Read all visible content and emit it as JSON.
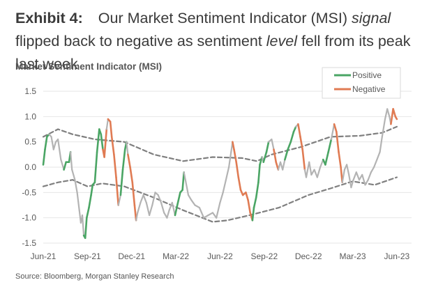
{
  "headline": {
    "label": "Exhibit 4:",
    "part1": "Our Market Sentiment Indicator (MSI) ",
    "em1": "signal",
    "part2": " flipped back to negative as sentiment ",
    "em2": "level",
    "part3": " fell from its peak last week"
  },
  "source": "Source: Bloomberg, Morgan Stanley Research",
  "colors": {
    "positive": "#4aa564",
    "negative": "#e07b53",
    "level": "#b3b3b3",
    "band": "#7f7f7f"
  },
  "chart_data": {
    "type": "line",
    "title": "Market Sentiment Indicator (MSI)",
    "ylim": [
      -1.5,
      1.5
    ],
    "yticks": [
      "1.5",
      "1.0",
      "0.5",
      "0.0",
      "-0.5",
      "-1.0",
      "-1.5"
    ],
    "yvalues": [
      1.5,
      1.0,
      0.5,
      0.0,
      -0.5,
      -1.0,
      -1.5
    ],
    "xticks": [
      "Jun-21",
      "Sep-21",
      "Dec-21",
      "Mar-22",
      "Jun-22",
      "Sep-22",
      "Dec-22",
      "Mar-23",
      "Jun-23"
    ],
    "xlim_months": [
      0,
      25
    ],
    "legend": {
      "position": "top-right",
      "entries": [
        "Positive",
        "Negative"
      ]
    },
    "series": [
      {
        "role": "msi",
        "points": [
          [
            0.0,
            0.05,
            "p"
          ],
          [
            0.12,
            0.35,
            "p"
          ],
          [
            0.25,
            0.6,
            "p"
          ],
          [
            0.4,
            0.65,
            "p"
          ],
          [
            0.55,
            0.6,
            "g"
          ],
          [
            0.7,
            0.35,
            "g"
          ],
          [
            0.85,
            0.5,
            "g"
          ],
          [
            1.0,
            0.55,
            "g"
          ],
          [
            1.2,
            0.15,
            "g"
          ],
          [
            1.4,
            -0.05,
            "g"
          ],
          [
            1.55,
            0.1,
            "p"
          ],
          [
            1.75,
            0.1,
            "p"
          ],
          [
            1.85,
            0.3,
            "p"
          ],
          [
            1.95,
            -0.05,
            "g"
          ],
          [
            2.15,
            -0.25,
            "g"
          ],
          [
            2.3,
            -0.5,
            "g"
          ],
          [
            2.45,
            -0.85,
            "g"
          ],
          [
            2.55,
            -1.1,
            "g"
          ],
          [
            2.65,
            -0.95,
            "g"
          ],
          [
            2.75,
            -1.35,
            "g"
          ],
          [
            2.85,
            -1.4,
            "p"
          ],
          [
            2.95,
            -1.0,
            "p"
          ],
          [
            3.1,
            -0.8,
            "p"
          ],
          [
            3.25,
            -0.55,
            "p"
          ],
          [
            3.35,
            -0.35,
            "p"
          ],
          [
            3.5,
            -0.3,
            "p"
          ],
          [
            3.65,
            0.3,
            "p"
          ],
          [
            3.8,
            0.75,
            "p"
          ],
          [
            3.92,
            0.65,
            "p"
          ],
          [
            4.05,
            0.35,
            "p"
          ],
          [
            4.15,
            0.2,
            "n"
          ],
          [
            4.3,
            0.75,
            "n"
          ],
          [
            4.4,
            0.95,
            "g"
          ],
          [
            4.55,
            0.9,
            "n"
          ],
          [
            4.65,
            0.6,
            "n"
          ],
          [
            4.8,
            0.25,
            "n"
          ],
          [
            4.95,
            -0.2,
            "n"
          ],
          [
            5.1,
            -0.75,
            "n"
          ],
          [
            5.25,
            -0.55,
            "g"
          ],
          [
            5.4,
            -0.05,
            "p"
          ],
          [
            5.55,
            0.35,
            "p"
          ],
          [
            5.65,
            0.5,
            "p"
          ],
          [
            5.75,
            0.25,
            "g"
          ],
          [
            5.9,
            0.0,
            "n"
          ],
          [
            6.05,
            -0.3,
            "n"
          ],
          [
            6.2,
            -0.75,
            "n"
          ],
          [
            6.3,
            -1.05,
            "n"
          ],
          [
            6.4,
            -0.9,
            "g"
          ],
          [
            6.6,
            -0.7,
            "g"
          ],
          [
            6.8,
            -0.55,
            "g"
          ],
          [
            7.0,
            -0.7,
            "g"
          ],
          [
            7.2,
            -0.95,
            "g"
          ],
          [
            7.4,
            -0.75,
            "g"
          ],
          [
            7.6,
            -0.5,
            "g"
          ],
          [
            7.8,
            -0.55,
            "g"
          ],
          [
            8.0,
            -0.7,
            "g"
          ],
          [
            8.2,
            -0.9,
            "g"
          ],
          [
            8.4,
            -1.0,
            "g"
          ],
          [
            8.55,
            -0.85,
            "g"
          ],
          [
            8.75,
            -0.7,
            "g"
          ],
          [
            8.95,
            -0.95,
            "g"
          ],
          [
            9.1,
            -0.75,
            "p"
          ],
          [
            9.3,
            -0.5,
            "p"
          ],
          [
            9.45,
            -0.45,
            "p"
          ],
          [
            9.55,
            -0.1,
            "p"
          ],
          [
            9.65,
            -0.25,
            "g"
          ],
          [
            9.85,
            -0.55,
            "g"
          ],
          [
            10.05,
            -0.65,
            "g"
          ],
          [
            10.3,
            -0.75,
            "g"
          ],
          [
            10.6,
            -0.8,
            "g"
          ],
          [
            10.9,
            -1.0,
            "g"
          ],
          [
            11.2,
            -0.95,
            "g"
          ],
          [
            11.5,
            -0.9,
            "g"
          ],
          [
            11.75,
            -1.0,
            "g"
          ],
          [
            12.0,
            -0.7,
            "g"
          ],
          [
            12.2,
            -0.5,
            "g"
          ],
          [
            12.4,
            -0.25,
            "g"
          ],
          [
            12.6,
            0.0,
            "g"
          ],
          [
            12.75,
            0.3,
            "g"
          ],
          [
            12.85,
            0.5,
            "g"
          ],
          [
            12.95,
            0.35,
            "n"
          ],
          [
            13.1,
            0.1,
            "n"
          ],
          [
            13.25,
            -0.2,
            "n"
          ],
          [
            13.4,
            -0.45,
            "n"
          ],
          [
            13.55,
            -0.55,
            "n"
          ],
          [
            13.75,
            -0.5,
            "n"
          ],
          [
            13.9,
            -0.65,
            "n"
          ],
          [
            14.05,
            -0.9,
            "n"
          ],
          [
            14.2,
            -1.05,
            "n"
          ],
          [
            14.3,
            -0.8,
            "p"
          ],
          [
            14.45,
            -0.6,
            "p"
          ],
          [
            14.6,
            -0.3,
            "p"
          ],
          [
            14.7,
            0.05,
            "p"
          ],
          [
            14.85,
            0.2,
            "p"
          ],
          [
            14.95,
            0.1,
            "g"
          ],
          [
            15.15,
            0.3,
            "p"
          ],
          [
            15.3,
            0.5,
            "p"
          ],
          [
            15.5,
            0.55,
            "g"
          ],
          [
            15.65,
            0.35,
            "g"
          ],
          [
            15.8,
            0.1,
            "n"
          ],
          [
            15.95,
            -0.05,
            "n"
          ],
          [
            16.1,
            0.1,
            "g"
          ],
          [
            16.25,
            -0.05,
            "g"
          ],
          [
            16.4,
            0.15,
            "g"
          ],
          [
            16.6,
            0.35,
            "p"
          ],
          [
            16.8,
            0.5,
            "p"
          ],
          [
            17.0,
            0.7,
            "p"
          ],
          [
            17.15,
            0.8,
            "p"
          ],
          [
            17.3,
            0.85,
            "g"
          ],
          [
            17.45,
            0.6,
            "n"
          ],
          [
            17.6,
            0.35,
            "n"
          ],
          [
            17.75,
            -0.05,
            "n"
          ],
          [
            17.85,
            -0.2,
            "g"
          ],
          [
            18.05,
            0.1,
            "g"
          ],
          [
            18.2,
            -0.15,
            "g"
          ],
          [
            18.4,
            -0.05,
            "g"
          ],
          [
            18.6,
            -0.2,
            "g"
          ],
          [
            18.8,
            0.0,
            "g"
          ],
          [
            19.0,
            0.15,
            "g"
          ],
          [
            19.15,
            0.05,
            "p"
          ],
          [
            19.35,
            0.3,
            "p"
          ],
          [
            19.55,
            0.55,
            "p"
          ],
          [
            19.75,
            0.85,
            "g"
          ],
          [
            19.9,
            0.7,
            "n"
          ],
          [
            20.05,
            0.3,
            "n"
          ],
          [
            20.2,
            0.0,
            "n"
          ],
          [
            20.3,
            -0.3,
            "n"
          ],
          [
            20.45,
            -0.05,
            "g"
          ],
          [
            20.6,
            0.05,
            "g"
          ],
          [
            20.75,
            -0.15,
            "g"
          ],
          [
            20.9,
            -0.4,
            "g"
          ],
          [
            21.05,
            -0.25,
            "g"
          ],
          [
            21.25,
            -0.1,
            "g"
          ],
          [
            21.45,
            -0.25,
            "g"
          ],
          [
            21.65,
            -0.15,
            "g"
          ],
          [
            21.85,
            -0.35,
            "g"
          ],
          [
            22.05,
            -0.25,
            "g"
          ],
          [
            22.25,
            -0.1,
            "g"
          ],
          [
            22.45,
            0.0,
            "g"
          ],
          [
            22.65,
            0.15,
            "g"
          ],
          [
            22.85,
            0.3,
            "g"
          ],
          [
            23.0,
            0.6,
            "g"
          ],
          [
            23.2,
            0.95,
            "g"
          ],
          [
            23.35,
            1.15,
            "g"
          ],
          [
            23.5,
            1.0,
            "g"
          ],
          [
            23.6,
            0.85,
            "g"
          ],
          [
            23.75,
            1.15,
            "n"
          ],
          [
            23.9,
            1.0,
            "n"
          ],
          [
            24.0,
            0.95,
            "n"
          ]
        ]
      },
      {
        "role": "upper-band",
        "points": [
          [
            0,
            0.6
          ],
          [
            1.0,
            0.75
          ],
          [
            2.0,
            0.65
          ],
          [
            3.5,
            0.55
          ],
          [
            5.5,
            0.5
          ],
          [
            7.5,
            0.25
          ],
          [
            9.5,
            0.12
          ],
          [
            11.5,
            0.2
          ],
          [
            13.5,
            0.18
          ],
          [
            14.5,
            0.12
          ],
          [
            15.5,
            0.25
          ],
          [
            17.5,
            0.4
          ],
          [
            19.5,
            0.6
          ],
          [
            21.5,
            0.62
          ],
          [
            23.0,
            0.68
          ],
          [
            24.0,
            0.8
          ]
        ]
      },
      {
        "role": "lower-band",
        "points": [
          [
            0,
            -0.38
          ],
          [
            1.0,
            -0.3
          ],
          [
            2.0,
            -0.25
          ],
          [
            3.0,
            -0.38
          ],
          [
            4.0,
            -0.32
          ],
          [
            5.5,
            -0.38
          ],
          [
            7.5,
            -0.6
          ],
          [
            9.5,
            -0.85
          ],
          [
            11.5,
            -1.08
          ],
          [
            12.5,
            -1.05
          ],
          [
            14.0,
            -0.95
          ],
          [
            16.0,
            -0.8
          ],
          [
            18.0,
            -0.55
          ],
          [
            19.5,
            -0.42
          ],
          [
            21.0,
            -0.28
          ],
          [
            22.5,
            -0.35
          ],
          [
            24.0,
            -0.2
          ]
        ]
      }
    ]
  }
}
